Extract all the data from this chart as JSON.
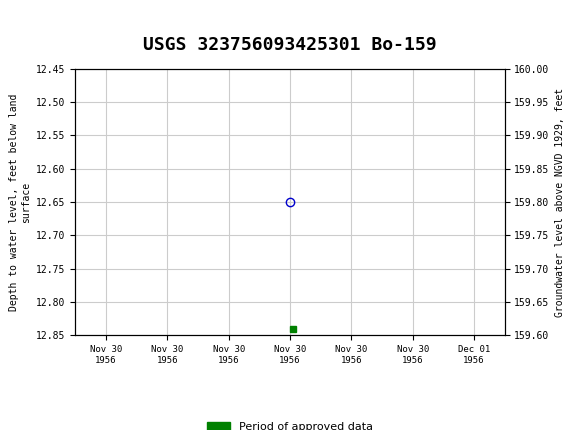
{
  "title": "USGS 323756093425301 Bo-159",
  "title_fontsize": 13,
  "header_bg_color": "#1a6b3c",
  "ylabel_left": "Depth to water level, feet below land\nsurface",
  "ylabel_right": "Groundwater level above NGVD 1929, feet",
  "ylim_left": [
    12.85,
    12.45
  ],
  "ylim_right": [
    159.6,
    160.0
  ],
  "yticks_left": [
    12.45,
    12.5,
    12.55,
    12.6,
    12.65,
    12.7,
    12.75,
    12.8,
    12.85
  ],
  "yticks_right": [
    160.0,
    159.95,
    159.9,
    159.85,
    159.8,
    159.75,
    159.7,
    159.65,
    159.6
  ],
  "grid_color": "#cccccc",
  "background_color": "#ffffff",
  "plot_bg_color": "#ffffff",
  "data_point_x": 3.0,
  "data_point_y": 12.65,
  "data_point_color": "#0000cc",
  "data_point_size": 6,
  "green_square_x": 3.05,
  "green_square_y": 12.84,
  "green_square_color": "#008000",
  "legend_label": "Period of approved data",
  "legend_color": "#008000",
  "font_family": "monospace",
  "xtick_labels": [
    "Nov 30\n1956",
    "Nov 30\n1956",
    "Nov 30\n1956",
    "Nov 30\n1956",
    "Nov 30\n1956",
    "Nov 30\n1956",
    "Dec 01\n1956"
  ],
  "xlim": [
    -0.5,
    6.5
  ]
}
